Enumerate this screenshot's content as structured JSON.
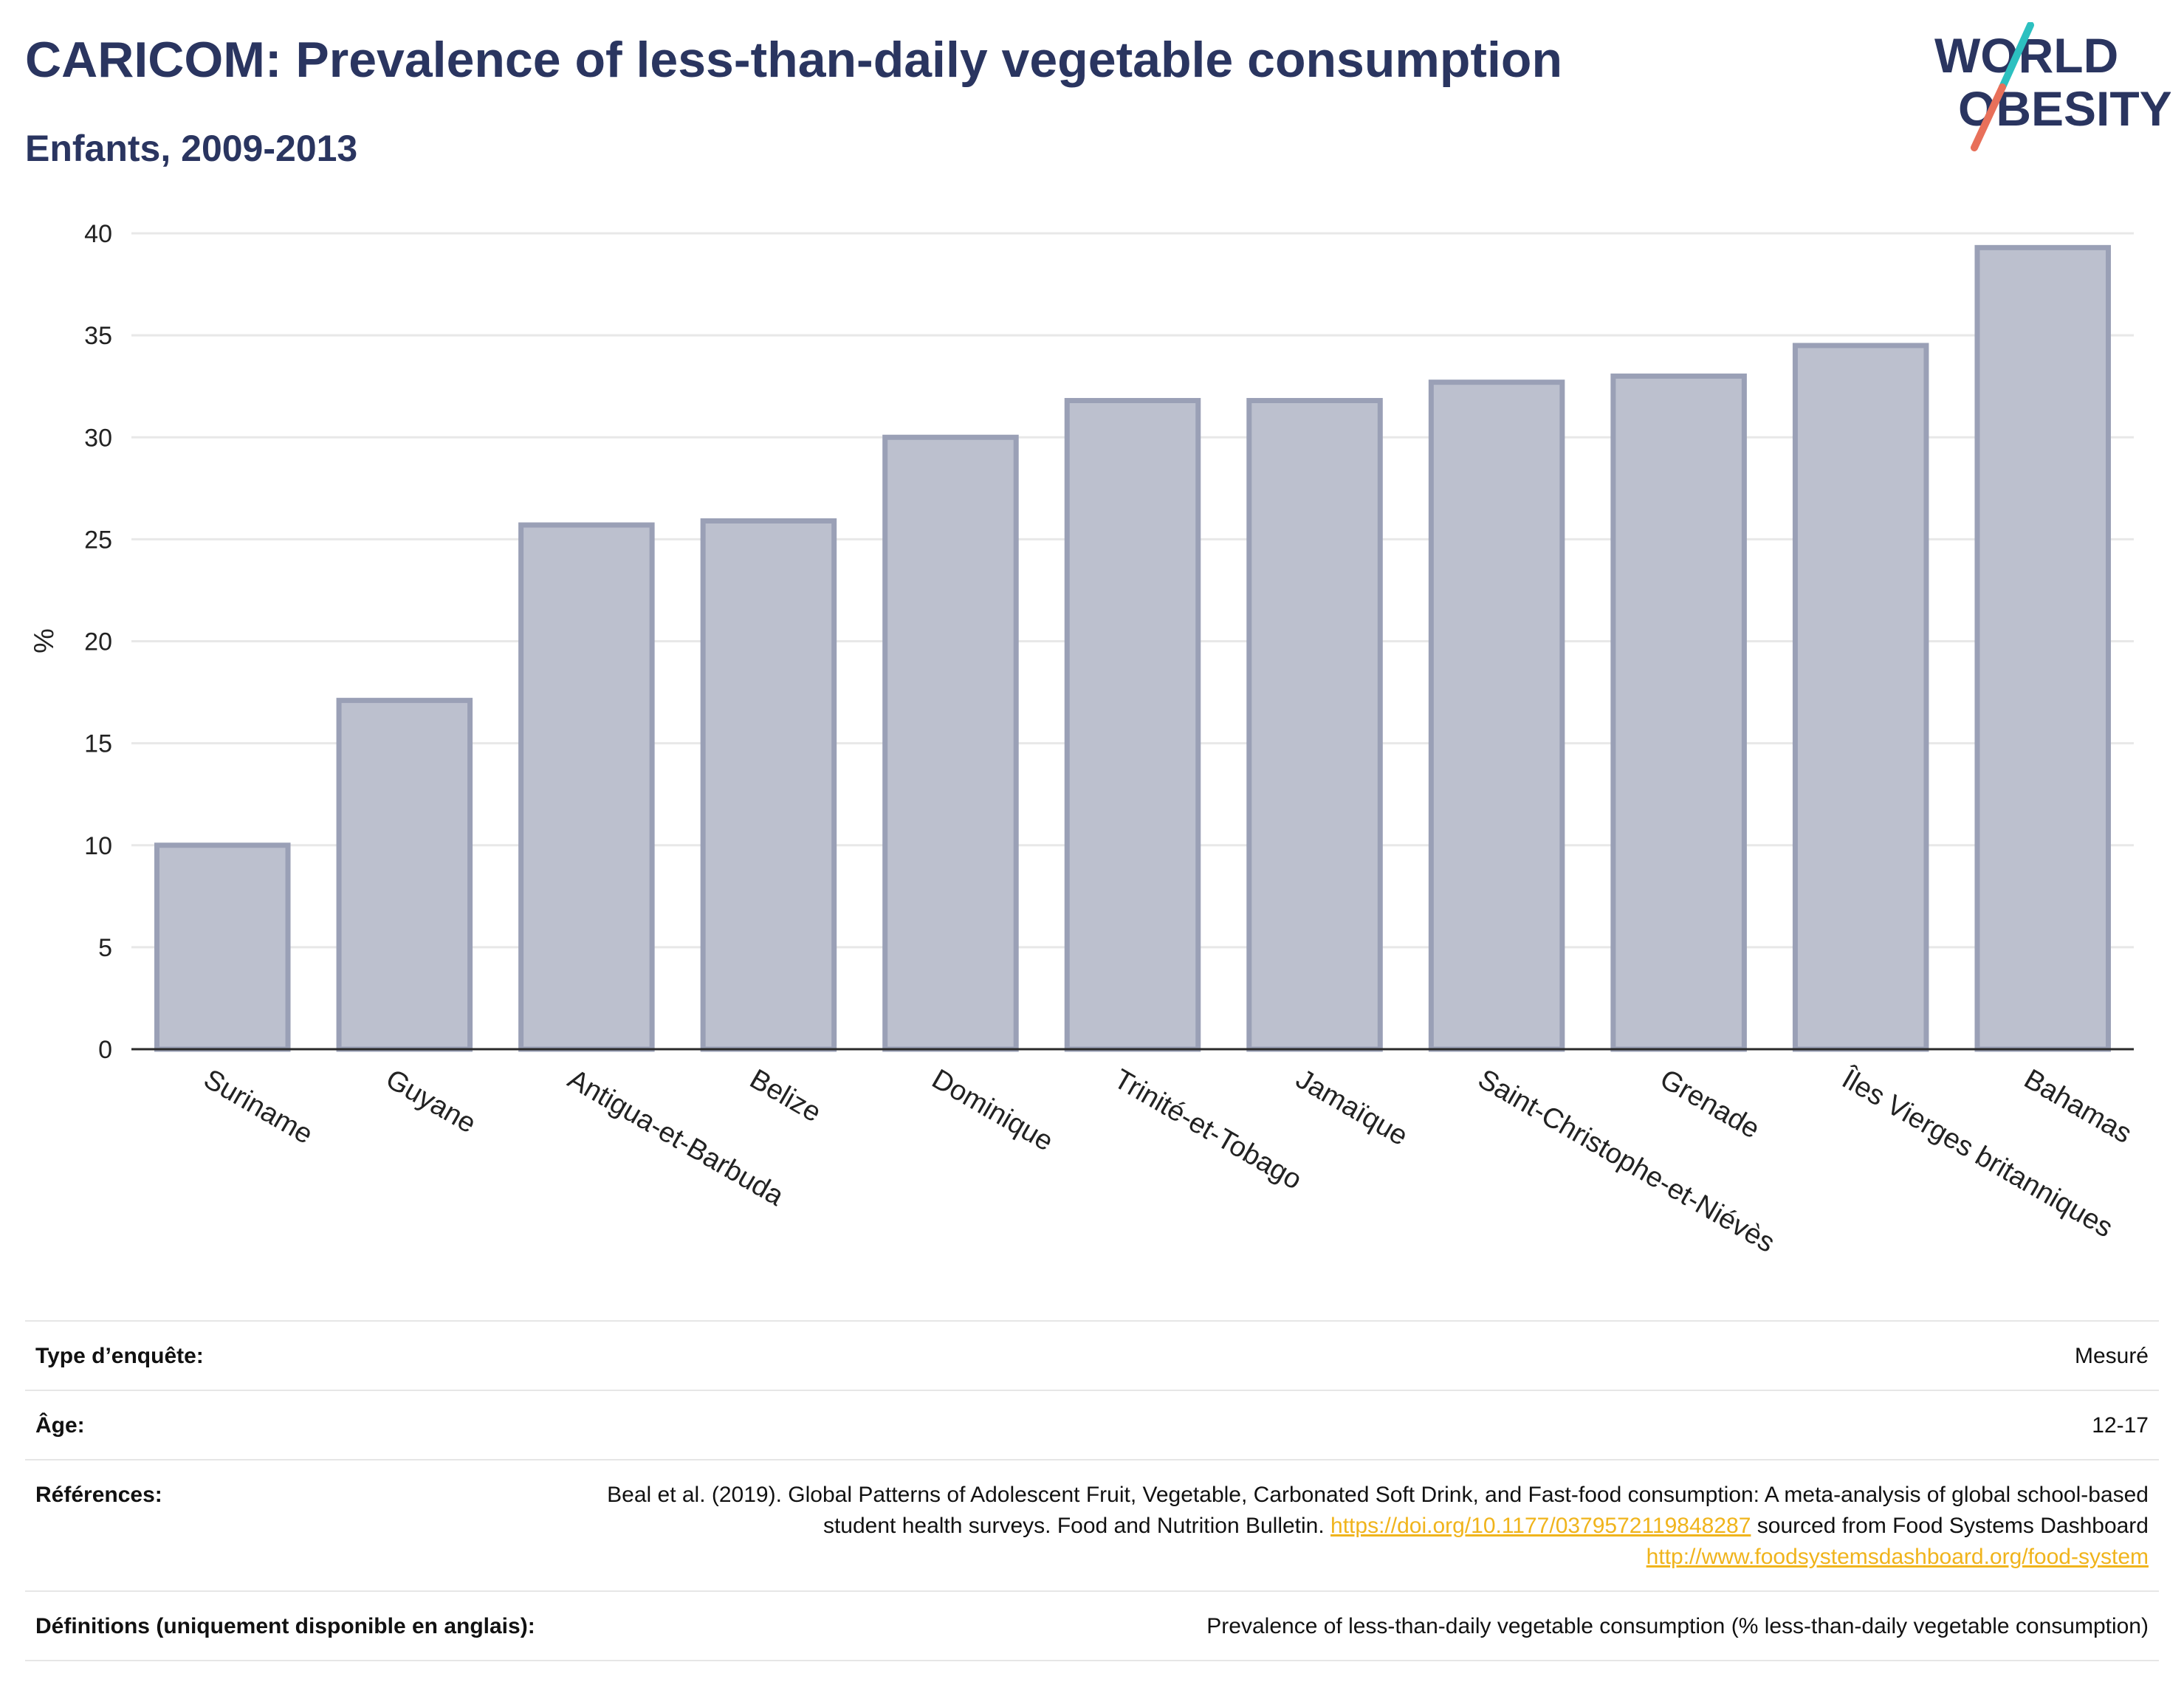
{
  "header": {
    "title": "CARICOM: Prevalence of less-than-daily vegetable consumption",
    "subtitle": "Enfants, 2009-2013"
  },
  "logo": {
    "line1": "WORLD",
    "line2": "OBESITY",
    "colors": {
      "text": "#2a3560",
      "slash_top": "#2cc0c0",
      "slash_bottom": "#e8705a"
    }
  },
  "chart_data": {
    "type": "bar",
    "categories": [
      "Suriname",
      "Guyane",
      "Antigua-et-Barbuda",
      "Belize",
      "Dominique",
      "Trinité-et-Tobago",
      "Jamaïque",
      "Saint-Christophe-et-Niévès",
      "Grenade",
      "Îles Vierges britanniques",
      "Bahamas"
    ],
    "values": [
      10.0,
      17.1,
      25.7,
      25.9,
      30.0,
      31.8,
      31.8,
      32.7,
      33.0,
      34.5,
      39.3
    ],
    "title": "CARICOM: Prevalence of less-than-daily vegetable consumption",
    "subtitle": "Enfants, 2009-2013",
    "xlabel": "",
    "ylabel": "%",
    "ylim": [
      0,
      40
    ],
    "yticks": [
      0,
      5,
      10,
      15,
      20,
      25,
      30,
      35,
      40
    ],
    "grid": true,
    "legend": "none",
    "colors": {
      "bar_fill": "#bcc0ce",
      "bar_stroke": "#9aa0b6",
      "axis": "#2a2a2a",
      "grid": "#e8e8e8"
    }
  },
  "meta": [
    {
      "label": "Type d’enquête:",
      "value": "Mesuré"
    },
    {
      "label": "Âge:",
      "value": "12-17"
    },
    {
      "label": "Références:",
      "value_pre": "Beal et al. (2019). Global Patterns of Adolescent Fruit, Vegetable, Carbonated Soft Drink, and Fast-food consumption: A meta-analysis of global school-based student health surveys. Food and Nutrition Bulletin. ",
      "link1": "https://doi.org/10.1177/0379572119848287",
      "value_mid": " sourced from Food Systems Dashboard ",
      "link2": "http://www.foodsystemsdashboard.org/food-system"
    },
    {
      "label": "Définitions (uniquement disponible en anglais):",
      "value": "Prevalence of less-than-daily vegetable consumption (% less-than-daily vegetable consumption)"
    }
  ]
}
